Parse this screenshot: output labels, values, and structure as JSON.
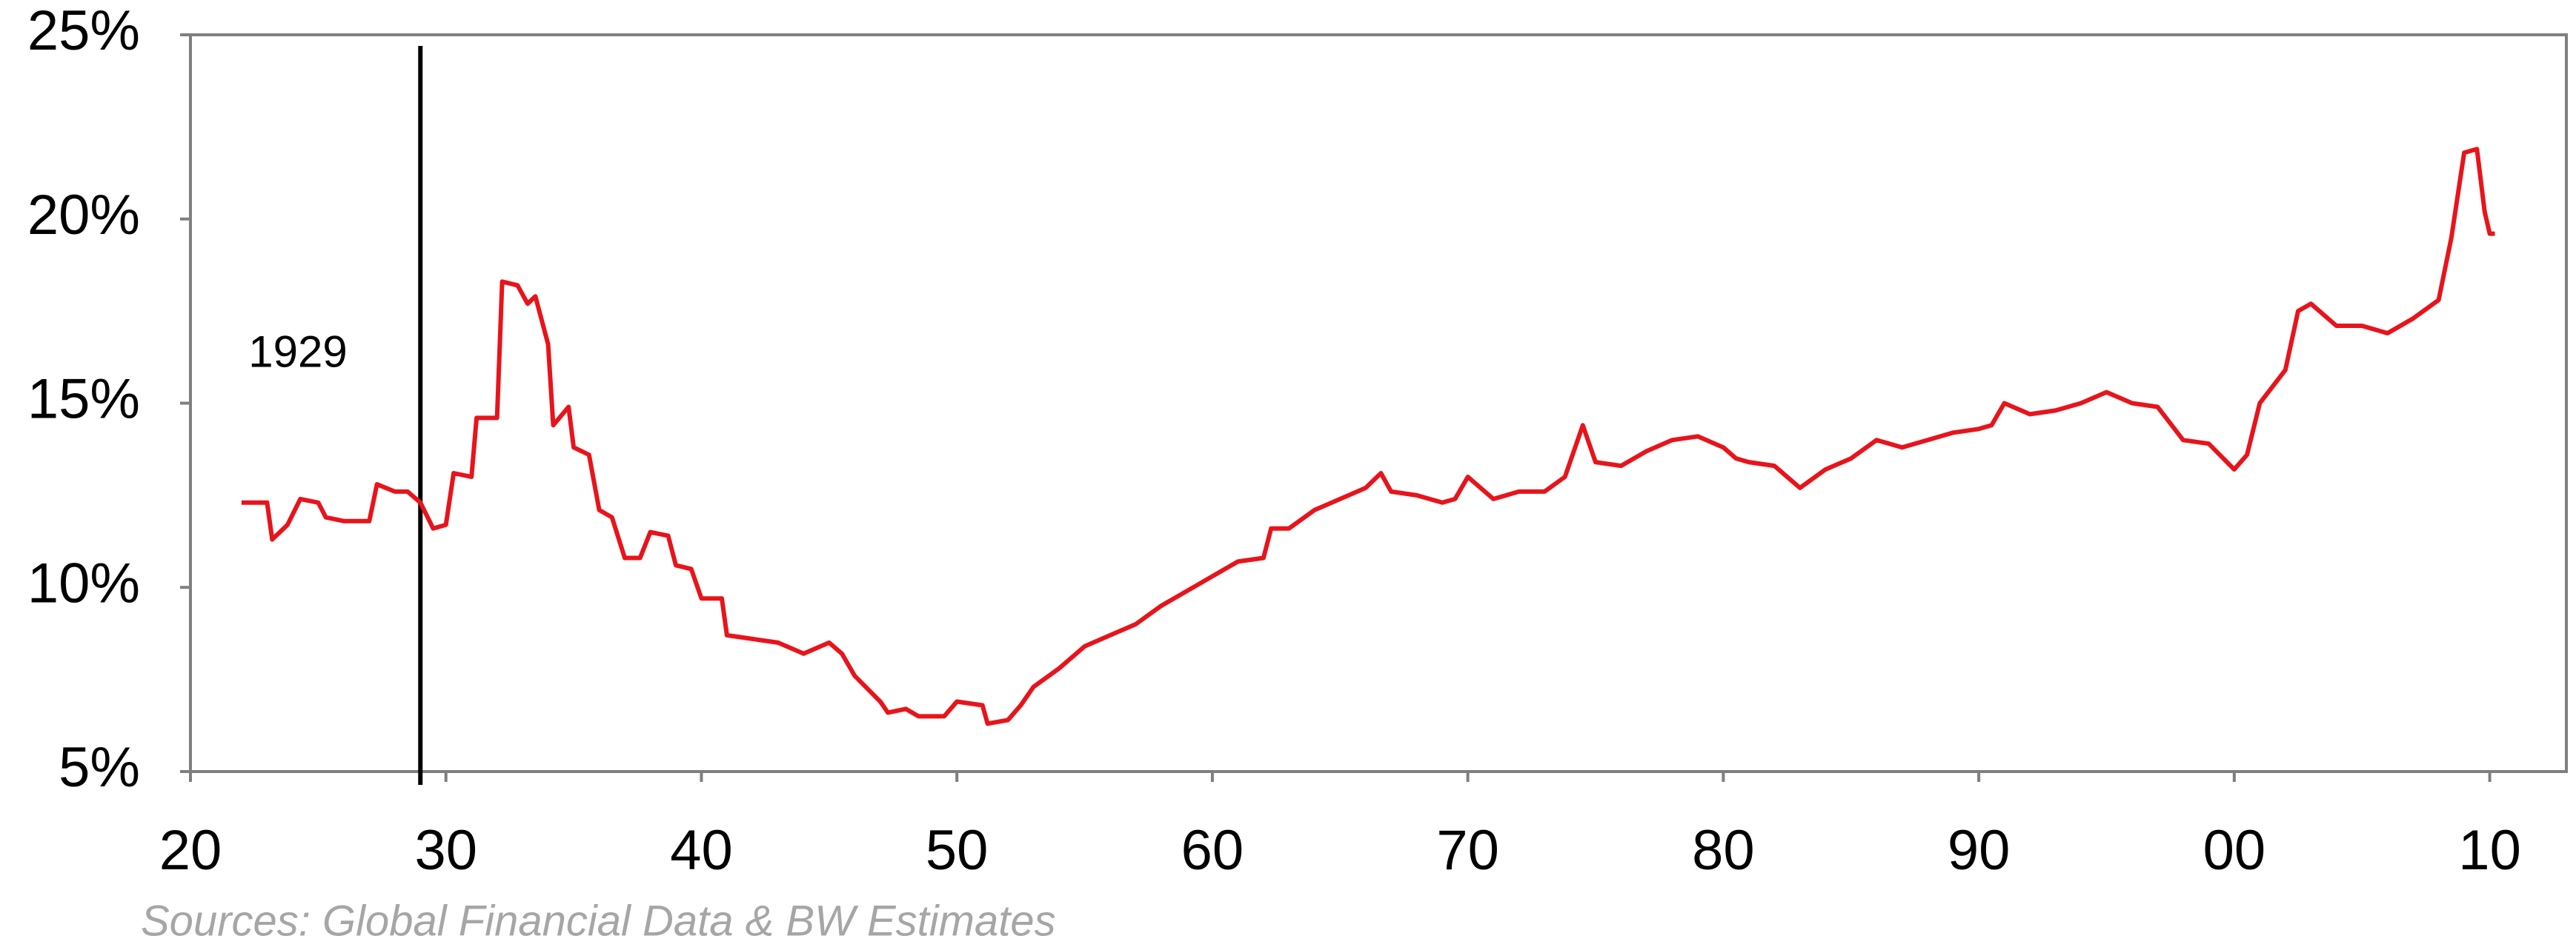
{
  "chart_data": {
    "type": "line",
    "x": [
      1922,
      1923,
      1923.2,
      1923.8,
      1924.3,
      1925,
      1925.3,
      1926,
      1927,
      1927.3,
      1928,
      1928.5,
      1929,
      1929.5,
      1930,
      1930.3,
      1931,
      1931.2,
      1932,
      1932.2,
      1932.8,
      1933.2,
      1933.5,
      1934,
      1934.2,
      1934.8,
      1935,
      1935.6,
      1936,
      1936.5,
      1937,
      1937.6,
      1938,
      1938.7,
      1939,
      1939.6,
      1940,
      1940.8,
      1941,
      1942,
      1943,
      1944,
      1945,
      1945.5,
      1946,
      1947,
      1947.3,
      1948,
      1948.5,
      1949.5,
      1950,
      1951,
      1951.2,
      1952,
      1952.5,
      1953,
      1954,
      1955,
      1956,
      1957,
      1958,
      1959,
      1960,
      1961,
      1962,
      1962.3,
      1963,
      1964,
      1965,
      1966,
      1966.6,
      1967,
      1968,
      1969,
      1969.5,
      1970,
      1971,
      1972,
      1973,
      1973.8,
      1974.5,
      1975,
      1976,
      1977,
      1978,
      1979,
      1980,
      1980.5,
      1981,
      1982,
      1983,
      1984,
      1985,
      1986,
      1987,
      1988,
      1989,
      1990,
      1990.5,
      1991,
      1992,
      1993,
      1994,
      1995,
      1996,
      1997,
      1998,
      1999,
      2000,
      2000.5,
      2001,
      2002,
      2002.5,
      2003,
      2004,
      2005,
      2006,
      2007,
      2008,
      2008.5,
      2009,
      2009.5,
      2009.8,
      2010,
      2010.2
    ],
    "series": [
      {
        "color": "#e8141b",
        "values": [
          12.3,
          12.3,
          11.3,
          11.7,
          12.4,
          12.3,
          11.9,
          11.8,
          11.8,
          12.8,
          12.6,
          12.6,
          12.3,
          11.6,
          11.7,
          13.1,
          13.0,
          14.6,
          14.6,
          18.3,
          18.2,
          17.7,
          17.9,
          16.6,
          14.4,
          14.9,
          13.8,
          13.6,
          12.1,
          11.9,
          10.8,
          10.8,
          11.5,
          11.4,
          10.6,
          10.5,
          9.7,
          9.7,
          8.7,
          8.6,
          8.5,
          8.2,
          8.5,
          8.2,
          7.6,
          6.9,
          6.6,
          6.7,
          6.5,
          6.5,
          6.9,
          6.8,
          6.3,
          6.4,
          6.8,
          7.3,
          7.8,
          8.4,
          8.7,
          9.0,
          9.5,
          9.9,
          10.3,
          10.7,
          10.8,
          11.6,
          11.6,
          12.1,
          12.4,
          12.7,
          13.1,
          12.6,
          12.5,
          12.3,
          12.4,
          13.0,
          12.4,
          12.6,
          12.6,
          13.0,
          14.4,
          13.4,
          13.3,
          13.7,
          14.0,
          14.1,
          13.8,
          13.5,
          13.4,
          13.3,
          12.7,
          13.2,
          13.5,
          14.0,
          13.8,
          14.0,
          14.2,
          14.3,
          14.4,
          15.0,
          14.7,
          14.8,
          15.0,
          15.3,
          15.0,
          14.9,
          14.0,
          13.9,
          13.2,
          13.6,
          15.0,
          15.9,
          17.5,
          17.7,
          17.1,
          17.1,
          16.9,
          17.3,
          17.8,
          19.5,
          21.8,
          21.9,
          20.2,
          19.6,
          19.6
        ]
      }
    ],
    "xlim": [
      1920,
      2013
    ],
    "ylim": [
      5,
      25
    ],
    "xticks": [
      {
        "value": 1920,
        "label": "20"
      },
      {
        "value": 1930,
        "label": "30"
      },
      {
        "value": 1940,
        "label": "40"
      },
      {
        "value": 1950,
        "label": "50"
      },
      {
        "value": 1960,
        "label": "60"
      },
      {
        "value": 1970,
        "label": "70"
      },
      {
        "value": 1980,
        "label": "80"
      },
      {
        "value": 1990,
        "label": "90"
      },
      {
        "value": 2000,
        "label": "00"
      },
      {
        "value": 2010,
        "label": "10"
      }
    ],
    "yticks": [
      {
        "value": 5,
        "label": "5%"
      },
      {
        "value": 10,
        "label": "10%"
      },
      {
        "value": 15,
        "label": "15%"
      },
      {
        "value": 20,
        "label": "20%"
      },
      {
        "value": 25,
        "label": "25%"
      }
    ],
    "grid": false,
    "annotations": [
      {
        "text": "1929",
        "x": 1929
      }
    ],
    "source": "Sources: Global Financial Data & BW Estimates"
  }
}
